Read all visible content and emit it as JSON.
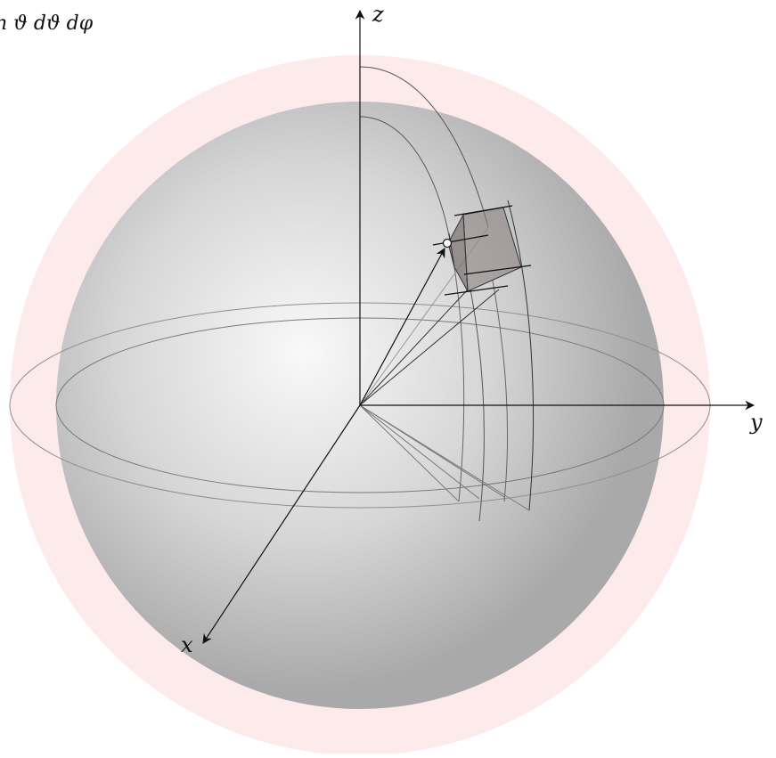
{
  "labels": {
    "formula": "n ϑ dϑ dφ",
    "x_axis": "x",
    "y_axis": "y",
    "z_axis": "z"
  },
  "colors": {
    "outer_shell": "#fdeaea",
    "sphere_highlight": "#f9f9f9",
    "sphere_mid": "#d6d6d6",
    "sphere_edge": "#a9a9a9",
    "lines": "#222222",
    "volume_element": "#8a8080"
  }
}
